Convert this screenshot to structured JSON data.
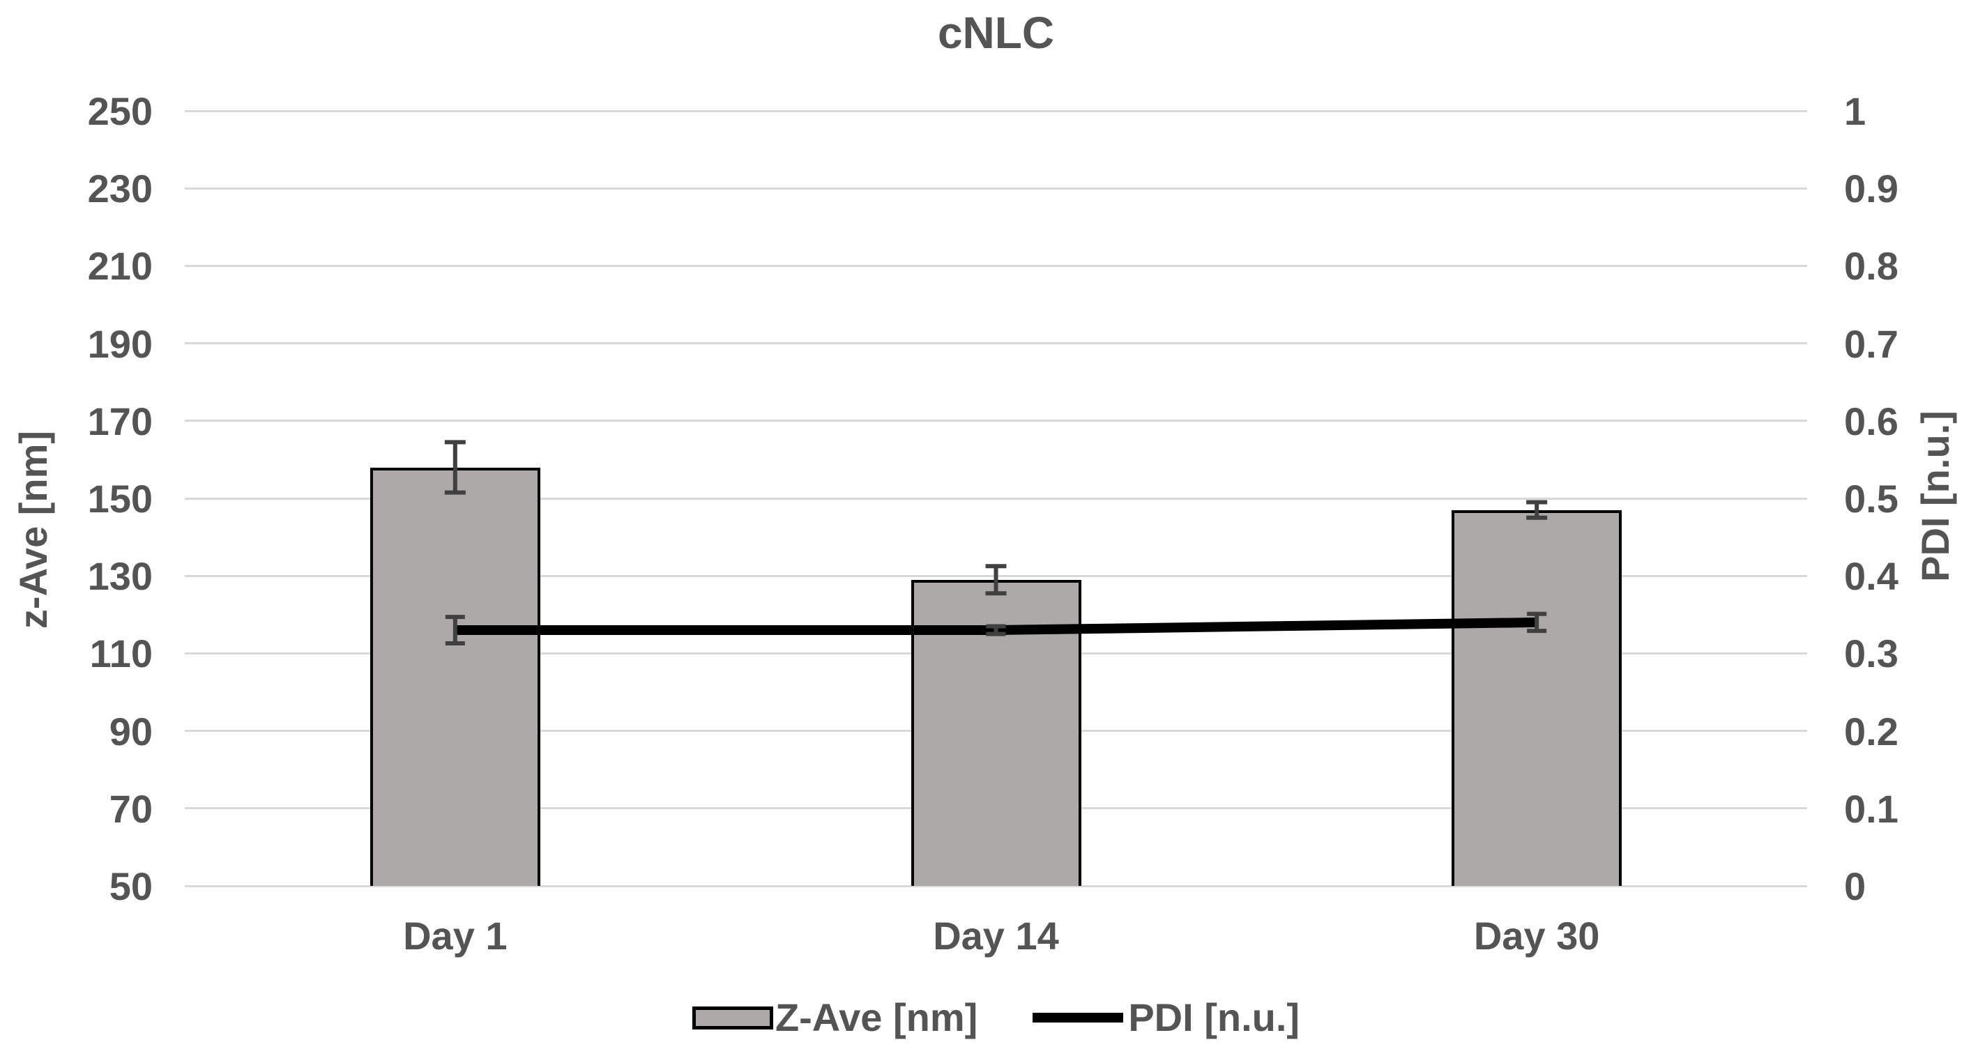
{
  "chart_data": {
    "type": "combo-bar-line",
    "title": "cNLC",
    "categories": [
      "Day 1",
      "Day 14",
      "Day 30"
    ],
    "series": [
      {
        "name": "Z-Ave [nm]",
        "type": "bar",
        "axis": "left",
        "values": [
          158,
          129,
          147
        ],
        "errors": [
          6.5,
          3.5,
          2
        ],
        "fill_color": "#ACA9A8",
        "border_color": "#000000"
      },
      {
        "name": "PDI [n.u.]",
        "type": "line",
        "axis": "right",
        "values": [
          0.33,
          0.33,
          0.34
        ],
        "errors": [
          0.017,
          0.005,
          0.011
        ],
        "color": "#000000"
      }
    ],
    "left_axis": {
      "label": "z-Ave [nm]",
      "min": 50,
      "max": 250,
      "tick_step": 20,
      "ticks": [
        "250",
        "230",
        "210",
        "190",
        "170",
        "150",
        "130",
        "110",
        "90",
        "70",
        "50"
      ]
    },
    "right_axis": {
      "label": "PDI [n.u.]",
      "min": 0,
      "max": 1,
      "tick_step": 0.1,
      "ticks": [
        "1",
        "0.9",
        "0.8",
        "0.7",
        "0.6",
        "0.5",
        "0.4",
        "0.3",
        "0.2",
        "0.1",
        "0"
      ]
    },
    "legend": [
      {
        "label": "Z-Ave [nm]",
        "marker": "bar-swatch"
      },
      {
        "label": "PDI [n.u.]",
        "marker": "line-swatch"
      }
    ],
    "grid": true,
    "legend_position": "bottom",
    "gridline_color": "#D9D9D9",
    "text_color": "#545454",
    "error_bar_color": "#404040"
  }
}
